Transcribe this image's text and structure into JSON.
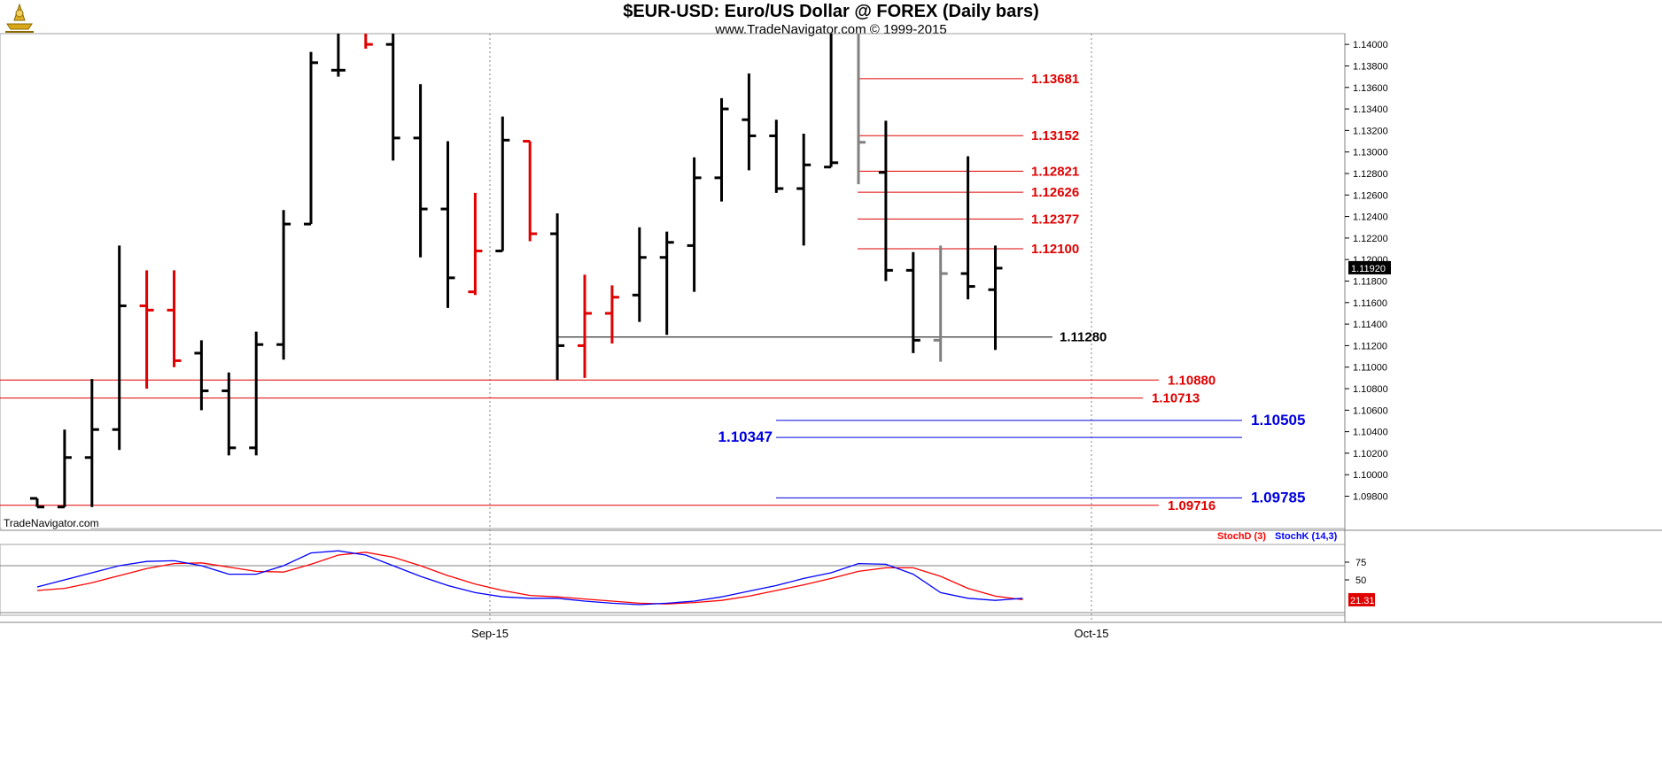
{
  "header": {
    "title": "$EUR-USD:  Euro/US Dollar @ FOREX  (Daily bars)",
    "subtitle": "www.TradeNavigator.com © 1999-2015"
  },
  "chart_data": {
    "type": "ohlc",
    "price_axis": {
      "ylim": [
        1.095,
        1.141
      ],
      "ticks": [
        "1.14000",
        "1.13800",
        "1.13600",
        "1.13400",
        "1.13200",
        "1.13000",
        "1.12800",
        "1.12600",
        "1.12400",
        "1.12200",
        "1.12000",
        "1.11800",
        "1.11600",
        "1.11400",
        "1.11200",
        "1.11000",
        "1.10800",
        "1.10600",
        "1.10400",
        "1.10200",
        "1.10000",
        "1.09800"
      ],
      "last_price": "1.11920"
    },
    "x_labels": [
      "Sep-15",
      "Oct-15"
    ],
    "bars": [
      {
        "o": 1.0978,
        "h": 1.0978,
        "l": 1.097,
        "c": 1.097,
        "color": "black"
      },
      {
        "o": 1.097,
        "h": 1.1042,
        "l": 1.097,
        "c": 1.1016,
        "color": "black"
      },
      {
        "o": 1.1016,
        "h": 1.1089,
        "l": 1.097,
        "c": 1.1042,
        "color": "black"
      },
      {
        "o": 1.1042,
        "h": 1.1213,
        "l": 1.1023,
        "c": 1.1157,
        "color": "black"
      },
      {
        "o": 1.1157,
        "h": 1.119,
        "l": 1.108,
        "c": 1.1153,
        "color": "red"
      },
      {
        "o": 1.1153,
        "h": 1.119,
        "l": 1.11,
        "c": 1.1106,
        "color": "red"
      },
      {
        "o": 1.1113,
        "h": 1.1125,
        "l": 1.106,
        "c": 1.1078,
        "color": "black"
      },
      {
        "o": 1.1078,
        "h": 1.1095,
        "l": 1.1018,
        "c": 1.1025,
        "color": "black"
      },
      {
        "o": 1.1025,
        "h": 1.1133,
        "l": 1.1018,
        "c": 1.1121,
        "color": "black"
      },
      {
        "o": 1.1121,
        "h": 1.1246,
        "l": 1.1107,
        "c": 1.1233,
        "color": "black"
      },
      {
        "o": 1.1233,
        "h": 1.1393,
        "l": 1.1233,
        "c": 1.1383,
        "color": "black"
      },
      {
        "o": 1.1376,
        "h": 1.142,
        "l": 1.137,
        "c": 1.1376,
        "color": "black"
      },
      {
        "o": 1.142,
        "h": 1.1425,
        "l": 1.1396,
        "c": 1.14,
        "color": "red"
      },
      {
        "o": 1.14,
        "h": 1.142,
        "l": 1.1292,
        "c": 1.1313,
        "color": "black"
      },
      {
        "o": 1.1313,
        "h": 1.1363,
        "l": 1.1202,
        "c": 1.1247,
        "color": "black"
      },
      {
        "o": 1.1247,
        "h": 1.131,
        "l": 1.1155,
        "c": 1.1183,
        "color": "black"
      },
      {
        "o": 1.117,
        "h": 1.1262,
        "l": 1.1167,
        "c": 1.1208,
        "color": "red"
      },
      {
        "o": 1.1208,
        "h": 1.1333,
        "l": 1.1208,
        "c": 1.1311,
        "color": "black"
      },
      {
        "o": 1.131,
        "h": 1.131,
        "l": 1.1217,
        "c": 1.1224,
        "color": "red"
      },
      {
        "o": 1.1224,
        "h": 1.1243,
        "l": 1.1088,
        "c": 1.112,
        "color": "black"
      },
      {
        "o": 1.112,
        "h": 1.1186,
        "l": 1.109,
        "c": 1.115,
        "color": "red"
      },
      {
        "o": 1.115,
        "h": 1.1176,
        "l": 1.1122,
        "c": 1.1165,
        "color": "red"
      },
      {
        "o": 1.1167,
        "h": 1.123,
        "l": 1.1142,
        "c": 1.1202,
        "color": "black"
      },
      {
        "o": 1.1202,
        "h": 1.1226,
        "l": 1.113,
        "c": 1.1216,
        "color": "black"
      },
      {
        "o": 1.1213,
        "h": 1.1295,
        "l": 1.117,
        "c": 1.1276,
        "color": "black"
      },
      {
        "o": 1.1276,
        "h": 1.135,
        "l": 1.1254,
        "c": 1.134,
        "color": "black"
      },
      {
        "o": 1.133,
        "h": 1.1373,
        "l": 1.1283,
        "c": 1.1315,
        "color": "black"
      },
      {
        "o": 1.1315,
        "h": 1.133,
        "l": 1.1262,
        "c": 1.1266,
        "color": "black"
      },
      {
        "o": 1.1266,
        "h": 1.1317,
        "l": 1.1213,
        "c": 1.1288,
        "color": "black"
      },
      {
        "o": 1.1286,
        "h": 1.142,
        "l": 1.1286,
        "c": 1.129,
        "color": "black"
      },
      {
        "o": 1.142,
        "h": 1.142,
        "l": 1.127,
        "c": 1.1309,
        "color": "gray"
      },
      {
        "o": 1.1281,
        "h": 1.1329,
        "l": 1.118,
        "c": 1.119,
        "color": "black"
      },
      {
        "o": 1.119,
        "h": 1.1207,
        "l": 1.1113,
        "c": 1.1125,
        "color": "black"
      },
      {
        "o": 1.1125,
        "h": 1.1213,
        "l": 1.1105,
        "c": 1.1187,
        "color": "gray"
      },
      {
        "o": 1.1187,
        "h": 1.1296,
        "l": 1.1163,
        "c": 1.1175,
        "color": "black"
      },
      {
        "o": 1.1172,
        "h": 1.1213,
        "l": 1.1116,
        "c": 1.1192,
        "color": "black"
      }
    ],
    "horizontal_lines": [
      {
        "value": 1.13681,
        "label": "1.13681",
        "color": "#e00000"
      },
      {
        "value": 1.13152,
        "label": "1.13152",
        "color": "#e00000"
      },
      {
        "value": 1.12821,
        "label": "1.12821",
        "color": "#e00000"
      },
      {
        "value": 1.12626,
        "label": "1.12626",
        "color": "#e00000"
      },
      {
        "value": 1.12377,
        "label": "1.12377",
        "color": "#e00000"
      },
      {
        "value": 1.121,
        "label": "1.12100",
        "color": "#e00000"
      },
      {
        "value": 1.1128,
        "label": "1.11280",
        "color": "#000000"
      },
      {
        "value": 1.1088,
        "label": "1.10880",
        "color": "#e00000"
      },
      {
        "value": 1.10713,
        "label": "1.10713",
        "color": "#e00000"
      },
      {
        "value": 1.10505,
        "label": "1.10505",
        "color": "#0000e0"
      },
      {
        "value": 1.10347,
        "label": "1.10347",
        "color": "#0000e0"
      },
      {
        "value": 1.09785,
        "label": "1.09785",
        "color": "#0000e0"
      },
      {
        "value": 1.09716,
        "label": "1.09716",
        "color": "#e00000"
      }
    ],
    "watermark": "TradeNavigator.com",
    "stochastic": {
      "legend": [
        "StochD (3)",
        "StochK (14,3)"
      ],
      "ylim": [
        0,
        100
      ],
      "ticks": [
        "75",
        "50"
      ],
      "last_value": "21.31",
      "stochK": [
        40,
        50,
        60,
        70,
        76,
        77,
        70,
        58,
        58,
        70,
        88,
        91,
        85,
        70,
        55,
        42,
        32,
        26,
        24,
        24,
        20,
        17,
        15,
        17,
        20,
        26,
        34,
        42,
        52,
        60,
        73,
        72,
        58,
        32,
        24,
        21,
        24
      ],
      "stochD": [
        35,
        38,
        46,
        56,
        66,
        73,
        74,
        68,
        62,
        61,
        72,
        85,
        89,
        82,
        70,
        56,
        44,
        35,
        28,
        26,
        23,
        20,
        17,
        16,
        18,
        21,
        27,
        35,
        43,
        52,
        62,
        67,
        67,
        55,
        38,
        27,
        22
      ]
    },
    "colors": {
      "stochK": "#0000ff",
      "stochD": "#ff0000",
      "up_bar": "#000000",
      "down_bar": "#e00000",
      "grid": "#808080"
    }
  }
}
